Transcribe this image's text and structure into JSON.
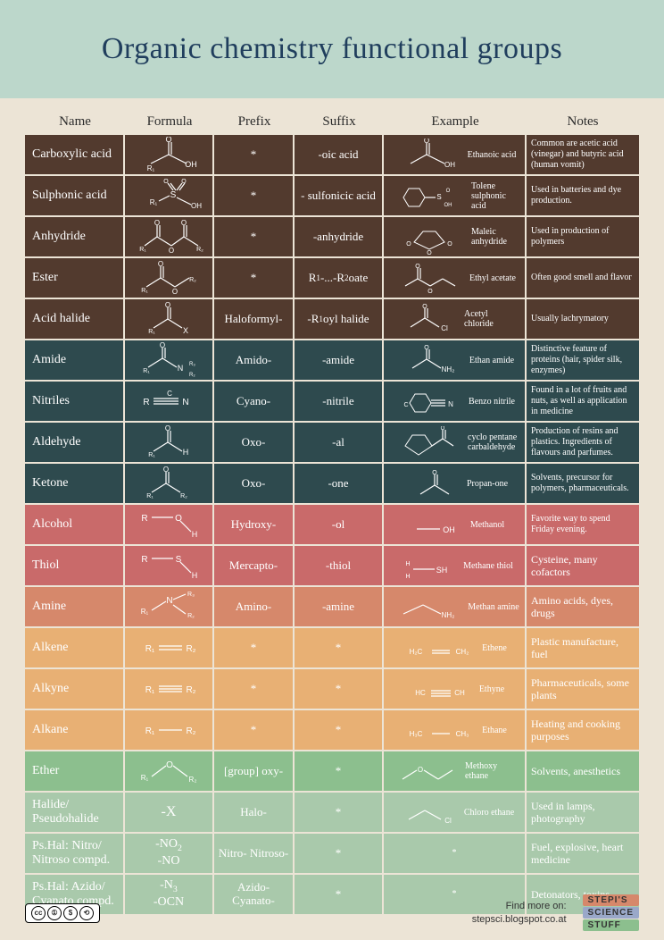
{
  "title": "Organic chemistry functional groups",
  "columns": [
    "Name",
    "Formula",
    "Prefix",
    "Suffix",
    "Example",
    "Notes"
  ],
  "palette": {
    "brown": "#523a2e",
    "teal": "#2e4a4e",
    "rose": "#c96a6a",
    "salmon": "#d6886b",
    "orange": "#e8b074",
    "green": "#8cbf8e",
    "sage": "#a9c9ab"
  },
  "rows": [
    {
      "color": "brown",
      "name": "Carboxylic acid",
      "prefix": "*",
      "suffix": "-oic acid",
      "example_label": "Ethanoic acid",
      "notes": "Common are acetic acid (vinegar) and butyric acid (human vomit)",
      "formula_svg": "carboxylic",
      "example_svg": "ethanoic"
    },
    {
      "color": "brown",
      "name": "Sulphonic acid",
      "prefix": "*",
      "suffix": "- sulfonicic acid",
      "example_label": "Tolene sulphonic acid",
      "notes": "Used in batteries and dye production.",
      "formula_svg": "sulphonic",
      "example_svg": "tolene"
    },
    {
      "color": "brown",
      "name": "Anhydride",
      "prefix": "*",
      "suffix": "-anhydride",
      "example_label": "Maleic anhydride",
      "notes": "Used in production of polymers",
      "formula_svg": "anhydride",
      "example_svg": "maleic"
    },
    {
      "color": "brown",
      "name": "Ester",
      "prefix": "*",
      "suffix_html": "R<sub>1</sub>-...-R<sub>2</sub> oate",
      "example_label": "Ethyl acetate",
      "notes": "Often good smell and flavor",
      "formula_svg": "ester",
      "example_svg": "ethylacetate"
    },
    {
      "color": "brown",
      "name": "Acid halide",
      "prefix": "Haloformyl-",
      "suffix_html": "-R<sub>1</sub>oyl halide",
      "example_label": "Acetyl chloride",
      "notes": "Usually lachrymatory",
      "formula_svg": "acidhalide",
      "example_svg": "acetylchloride"
    },
    {
      "color": "teal",
      "name": "Amide",
      "prefix": "Amido-",
      "suffix": "-amide",
      "example_label": "Ethan amide",
      "notes": "Distinctive feature of proteins (hair, spider silk, enzymes)",
      "formula_svg": "amide",
      "example_svg": "ethanamide"
    },
    {
      "color": "teal",
      "name": "Nitriles",
      "prefix": "Cyano-",
      "suffix": "-nitrile",
      "example_label": "Benzo nitrile",
      "notes": "Found in a lot of fruits and nuts, as well as application in medicine",
      "formula_svg": "nitrile",
      "example_svg": "benzonitrile"
    },
    {
      "color": "teal",
      "name": "Aldehyde",
      "prefix": "Oxo-",
      "suffix": "-al",
      "example_label": "cyclo pentane carbaldehyde",
      "notes": "Production of resins and plastics. Ingredients of flavours and parfumes.",
      "formula_svg": "aldehyde",
      "example_svg": "cyclopentane"
    },
    {
      "color": "teal",
      "name": "Ketone",
      "prefix": "Oxo-",
      "suffix": "-one",
      "example_label": "Propan-one",
      "notes": "Solvents, precursor for polymers, pharmaceuticals.",
      "formula_svg": "ketone",
      "example_svg": "propanone"
    },
    {
      "color": "rose",
      "name": "Alcohol",
      "prefix": "Hydroxy-",
      "suffix": "-ol",
      "example_label": "Methanol",
      "notes": "Favorite way to spend Friday evening.",
      "formula_svg": "alcohol",
      "example_svg": "methanol"
    },
    {
      "color": "rose",
      "name": "Thiol",
      "prefix": "Mercapto-",
      "suffix": "-thiol",
      "example_label": "Methane thiol",
      "notes": "Cysteine, many cofactors",
      "notes_big": true,
      "formula_svg": "thiol",
      "example_svg": "methanethiol"
    },
    {
      "color": "salmon",
      "name": "Amine",
      "prefix": "Amino-",
      "suffix": "-amine",
      "example_label": "Methan amine",
      "notes": "Amino acids, dyes, drugs",
      "notes_big": true,
      "formula_svg": "amine",
      "example_svg": "methanamine"
    },
    {
      "color": "orange",
      "name": "Alkene",
      "prefix": "*",
      "suffix": "*",
      "example_label": "Ethene",
      "notes": "Plastic manufacture, fuel",
      "notes_big": true,
      "formula_svg": "alkene",
      "example_svg": "ethene"
    },
    {
      "color": "orange",
      "name": "Alkyne",
      "prefix": "*",
      "suffix": "*",
      "example_label": "Ethyne",
      "notes": "Pharmaceuticals, some plants",
      "notes_big": true,
      "formula_svg": "alkyne",
      "example_svg": "ethyne"
    },
    {
      "color": "orange",
      "name": "Alkane",
      "prefix": "*",
      "suffix": "*",
      "example_label": "Ethane",
      "notes": "Heating and cooking purposes",
      "notes_big": true,
      "formula_svg": "alkane",
      "example_svg": "ethane"
    },
    {
      "color": "green",
      "name": "Ether",
      "prefix": "[group] oxy-",
      "suffix": "*",
      "example_label": "Methoxy ethane",
      "notes": "Solvents, anesthetics",
      "notes_big": true,
      "formula_svg": "ether",
      "example_svg": "methoxyethane"
    },
    {
      "color": "sage",
      "name": "Halide/ Pseudohalide",
      "prefix": "Halo-",
      "suffix": "*",
      "formula_text": "-X",
      "example_label": "Chloro ethane",
      "notes": "Used in lamps, photography",
      "notes_big": true,
      "example_svg": "chloroethane"
    },
    {
      "color": "sage",
      "name": "Ps.Hal: Nitro/ Nitroso compd.",
      "prefix": "Nitro- Nitroso-",
      "suffix": "*",
      "formula_html": "-NO<sub>2</sub><br>-NO",
      "example_label": "*",
      "notes": "Fuel, explosive, heart medicine",
      "notes_big": true
    },
    {
      "color": "sage",
      "name": "Ps.Hal: Azido/ Cyanato compd.",
      "prefix": "Azido- Cyanato-",
      "suffix": "*",
      "formula_html": "-N<sub>3</sub><br>-OCN",
      "example_label": "*",
      "notes": "Detonators, toxins",
      "notes_big": true
    }
  ],
  "footer": {
    "cc_parts": [
      "cc",
      "BY",
      "NC",
      "SA"
    ],
    "find_more_label": "Find more on:",
    "find_more_url": "stepsci.blogspot.co.at",
    "stepi": [
      {
        "text": "STEPI'S",
        "bg": "#d6886b"
      },
      {
        "text": "SCIENCE",
        "bg": "#9aa8c9"
      },
      {
        "text": "STUFF",
        "bg": "#8cbf8e"
      }
    ]
  }
}
